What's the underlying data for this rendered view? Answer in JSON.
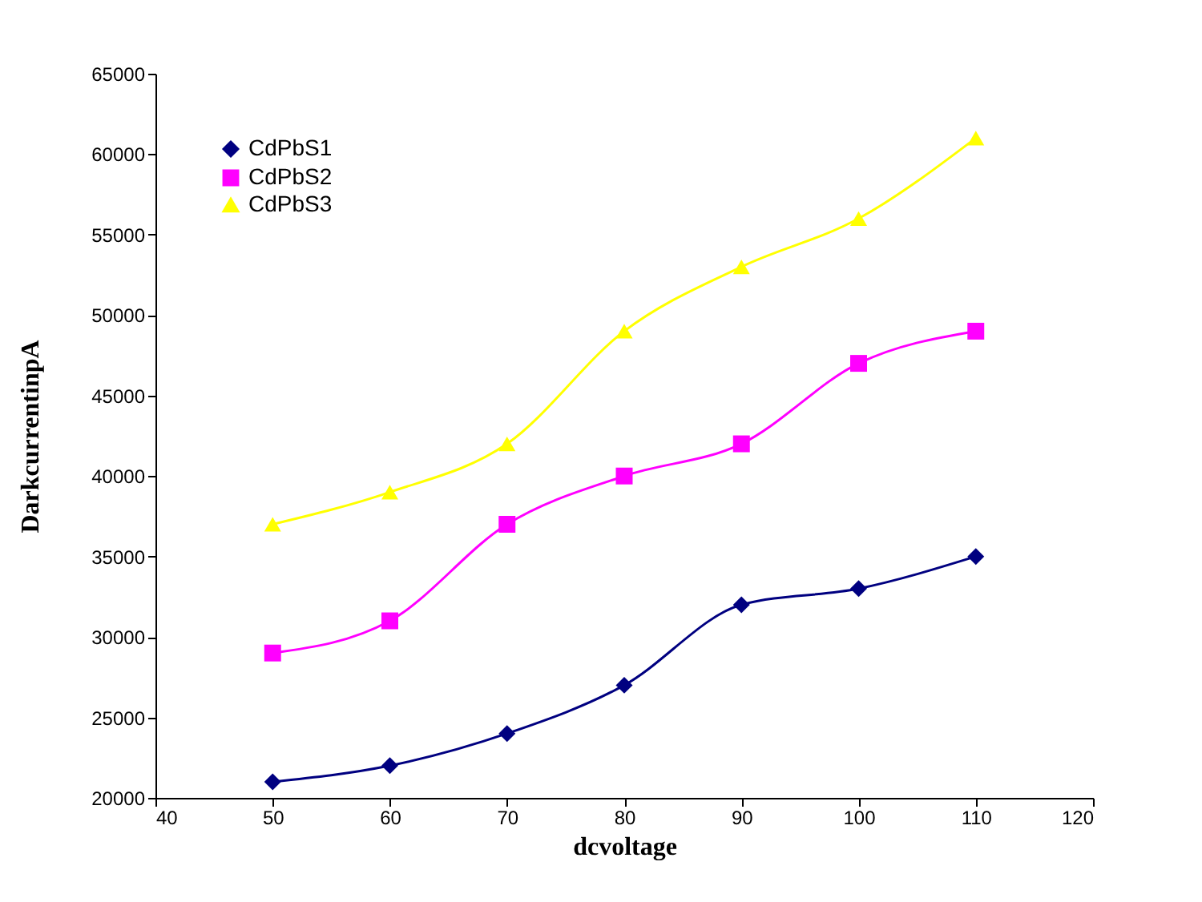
{
  "chart_data": {
    "type": "line",
    "xlabel": "dcvoltage",
    "ylabel": "DarkcurrentinpA",
    "x": [
      50,
      60,
      70,
      80,
      90,
      100,
      110
    ],
    "series": [
      {
        "name": "CdPbS1",
        "color": "#000080",
        "marker": "diamond",
        "values": [
          21000,
          22000,
          24000,
          27000,
          32000,
          33000,
          35000
        ]
      },
      {
        "name": "CdPbS2",
        "color": "#ff00ff",
        "marker": "square",
        "values": [
          29000,
          31000,
          37000,
          40000,
          42000,
          47000,
          49000
        ]
      },
      {
        "name": "CdPbS3",
        "color": "#ffff00",
        "marker": "triangle",
        "values": [
          37000,
          39000,
          42000,
          49000,
          53000,
          56000,
          61000
        ]
      }
    ],
    "xlim": [
      40,
      120
    ],
    "xticks": [
      40,
      50,
      60,
      70,
      80,
      90,
      100,
      110,
      120
    ],
    "ylim": [
      20000,
      65000
    ],
    "yticks": [
      20000,
      25000,
      30000,
      35000,
      40000,
      45000,
      50000,
      55000,
      60000,
      65000
    ],
    "grid": false,
    "legend": "top left",
    "line_style": "solid"
  }
}
